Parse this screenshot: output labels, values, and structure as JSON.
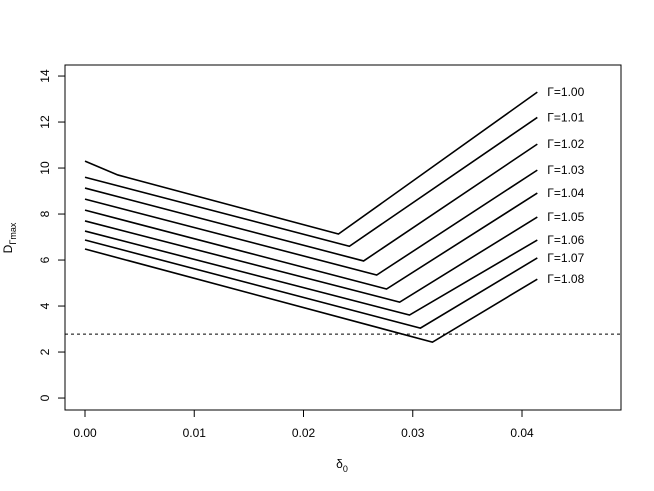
{
  "chart_data": {
    "type": "line",
    "x_label": {
      "main": "δ",
      "sub": "0"
    },
    "y_label": {
      "main": "D",
      "sub": "Γmax"
    },
    "xlim": [
      -0.00183,
      0.04906
    ],
    "ylim": [
      -0.52,
      14.48
    ],
    "xticks": [
      {
        "value": 0,
        "label": "0.00"
      },
      {
        "value": 0.01,
        "label": "0.01"
      },
      {
        "value": 0.02,
        "label": "0.02"
      },
      {
        "value": 0.03,
        "label": "0.03"
      },
      {
        "value": 0.04,
        "label": "0.04"
      }
    ],
    "yticks": [
      0,
      2,
      4,
      6,
      8,
      10,
      12,
      14
    ],
    "hline": 2.78,
    "series": [
      {
        "name": "Γ=1.00",
        "color": "#000000",
        "x": [
          0,
          0.003,
          0.0232,
          0.0414
        ],
        "values": [
          10.3,
          9.7,
          7.13,
          13.3
        ]
      },
      {
        "name": "Γ=1.01",
        "color": "#000000",
        "x": [
          0,
          0.0242,
          0.0414
        ],
        "values": [
          9.6,
          6.6,
          12.2
        ]
      },
      {
        "name": "Γ=1.02",
        "color": "#000000",
        "x": [
          0,
          0.0255,
          0.0414
        ],
        "values": [
          9.13,
          5.96,
          11.04
        ]
      },
      {
        "name": "Γ=1.03",
        "color": "#000000",
        "x": [
          0,
          0.0267,
          0.0414
        ],
        "values": [
          8.65,
          5.35,
          9.91
        ]
      },
      {
        "name": "Γ=1.04",
        "color": "#000000",
        "x": [
          0,
          0.0276,
          0.0414
        ],
        "values": [
          8.17,
          4.74,
          8.91
        ]
      },
      {
        "name": "Γ=1.05",
        "color": "#000000",
        "x": [
          0,
          0.0288,
          0.0414
        ],
        "values": [
          7.7,
          4.17,
          7.87
        ]
      },
      {
        "name": "Γ=1.06",
        "color": "#000000",
        "x": [
          0,
          0.0297,
          0.0414
        ],
        "values": [
          7.26,
          3.61,
          6.87
        ]
      },
      {
        "name": "Γ=1.07",
        "color": "#000000",
        "x": [
          0,
          0.0307,
          0.0414
        ],
        "values": [
          6.87,
          3.04,
          6.09
        ]
      },
      {
        "name": "Γ=1.08",
        "color": "#000000",
        "x": [
          0,
          0.0318,
          0.0414
        ],
        "values": [
          6.48,
          2.43,
          5.17
        ]
      }
    ]
  }
}
